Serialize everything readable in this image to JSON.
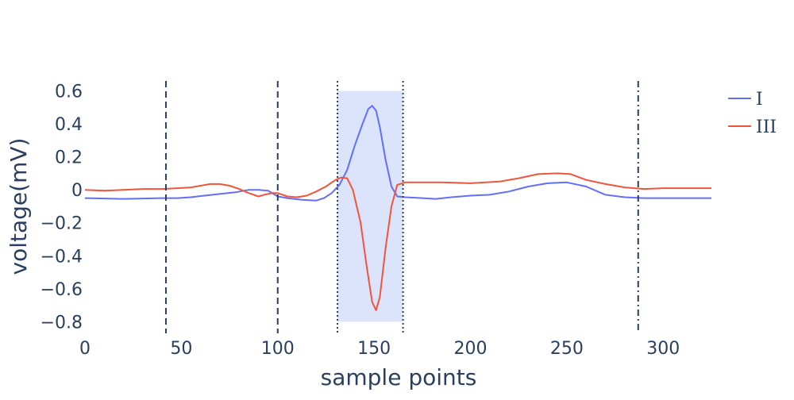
{
  "chart_data": {
    "type": "line",
    "xlabel": "sample points",
    "ylabel": "voltage(mV)",
    "xlim": [
      0,
      325
    ],
    "ylim": [
      -0.87,
      0.66
    ],
    "x_ticks": [
      0,
      50,
      100,
      150,
      200,
      250,
      300
    ],
    "y_ticks": [
      0.6,
      0.4,
      0.2,
      0,
      -0.2,
      -0.4,
      -0.6,
      -0.8
    ],
    "y_tick_labels": [
      "0.6",
      "0.4",
      "0.2",
      "0",
      "−0.2",
      "−0.4",
      "−0.6",
      "−0.8"
    ],
    "grid": false,
    "legend_position": "top-right",
    "series": [
      {
        "name": "I",
        "color": "#636efa",
        "points": [
          [
            0,
            -0.05
          ],
          [
            20,
            -0.055
          ],
          [
            40,
            -0.05
          ],
          [
            48,
            -0.05
          ],
          [
            55,
            -0.045
          ],
          [
            62,
            -0.035
          ],
          [
            70,
            -0.025
          ],
          [
            78,
            -0.015
          ],
          [
            85,
            0.0
          ],
          [
            90,
            0.0
          ],
          [
            95,
            -0.005
          ],
          [
            100,
            -0.04
          ],
          [
            105,
            -0.05
          ],
          [
            112,
            -0.06
          ],
          [
            120,
            -0.065
          ],
          [
            124,
            -0.05
          ],
          [
            128,
            -0.02
          ],
          [
            132,
            0.03
          ],
          [
            136,
            0.12
          ],
          [
            140,
            0.27
          ],
          [
            144,
            0.4
          ],
          [
            147,
            0.49
          ],
          [
            149,
            0.51
          ],
          [
            151,
            0.48
          ],
          [
            153,
            0.38
          ],
          [
            156,
            0.18
          ],
          [
            159,
            0.02
          ],
          [
            162,
            -0.04
          ],
          [
            166,
            -0.045
          ],
          [
            175,
            -0.05
          ],
          [
            182,
            -0.055
          ],
          [
            190,
            -0.045
          ],
          [
            200,
            -0.035
          ],
          [
            210,
            -0.03
          ],
          [
            220,
            -0.01
          ],
          [
            230,
            0.02
          ],
          [
            240,
            0.04
          ],
          [
            250,
            0.045
          ],
          [
            260,
            0.02
          ],
          [
            270,
            -0.03
          ],
          [
            280,
            -0.045
          ],
          [
            290,
            -0.05
          ],
          [
            300,
            -0.05
          ],
          [
            310,
            -0.05
          ],
          [
            325,
            -0.05
          ]
        ]
      },
      {
        "name": "III",
        "color": "#ef553b",
        "points": [
          [
            0,
            0.0
          ],
          [
            10,
            -0.005
          ],
          [
            20,
            0.0
          ],
          [
            30,
            0.005
          ],
          [
            40,
            0.005
          ],
          [
            48,
            0.01
          ],
          [
            55,
            0.015
          ],
          [
            60,
            0.025
          ],
          [
            65,
            0.035
          ],
          [
            70,
            0.035
          ],
          [
            75,
            0.025
          ],
          [
            80,
            0.005
          ],
          [
            85,
            -0.02
          ],
          [
            90,
            -0.04
          ],
          [
            93,
            -0.03
          ],
          [
            97,
            -0.02
          ],
          [
            100,
            -0.02
          ],
          [
            105,
            -0.04
          ],
          [
            110,
            -0.045
          ],
          [
            115,
            -0.035
          ],
          [
            120,
            -0.01
          ],
          [
            125,
            0.02
          ],
          [
            130,
            0.06
          ],
          [
            133,
            0.075
          ],
          [
            136,
            0.07
          ],
          [
            139,
            0.0
          ],
          [
            143,
            -0.2
          ],
          [
            146,
            -0.45
          ],
          [
            149,
            -0.68
          ],
          [
            151,
            -0.73
          ],
          [
            153,
            -0.65
          ],
          [
            156,
            -0.35
          ],
          [
            159,
            -0.1
          ],
          [
            162,
            0.03
          ],
          [
            166,
            0.045
          ],
          [
            175,
            0.045
          ],
          [
            185,
            0.045
          ],
          [
            200,
            0.04
          ],
          [
            215,
            0.05
          ],
          [
            225,
            0.07
          ],
          [
            235,
            0.095
          ],
          [
            245,
            0.1
          ],
          [
            252,
            0.095
          ],
          [
            260,
            0.06
          ],
          [
            270,
            0.035
          ],
          [
            280,
            0.015
          ],
          [
            290,
            0.005
          ],
          [
            300,
            0.01
          ],
          [
            310,
            0.01
          ],
          [
            325,
            0.01
          ]
        ]
      }
    ],
    "shapes": [
      {
        "type": "vline",
        "x": 42,
        "style": "dash"
      },
      {
        "type": "vline",
        "x": 100,
        "style": "dash"
      },
      {
        "type": "vline",
        "x": 287,
        "style": "dashdot"
      },
      {
        "type": "vline",
        "x": 131,
        "style": "dot"
      },
      {
        "type": "vline",
        "x": 165,
        "style": "dot"
      },
      {
        "type": "vrect",
        "x0": 131,
        "x1": 165,
        "y0": -0.8,
        "y1": 0.6,
        "fill": "#dbe4fa"
      }
    ]
  }
}
